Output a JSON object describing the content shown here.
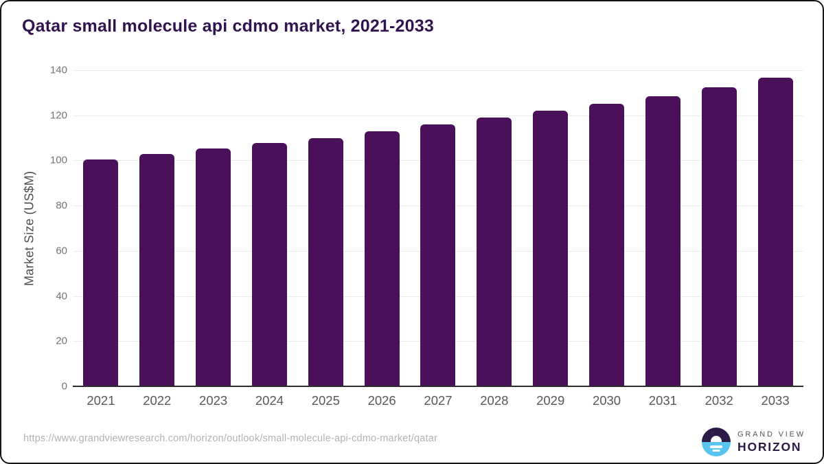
{
  "page": {
    "source_url": "https://www.grandviewresearch.com/horizon/outlook/small-molecule-api-cdmo-market/qatar"
  },
  "chart_data": {
    "type": "bar",
    "title": "Qatar small molecule api cdmo market, 2021-2033",
    "categories": [
      "2021",
      "2022",
      "2023",
      "2024",
      "2025",
      "2026",
      "2027",
      "2028",
      "2029",
      "2030",
      "2031",
      "2032",
      "2033"
    ],
    "values": [
      100.5,
      103.0,
      105.4,
      107.8,
      110.0,
      113.0,
      116.0,
      119.1,
      122.2,
      125.2,
      128.5,
      132.5,
      136.6
    ],
    "xlabel": "",
    "ylabel": "Market Size (US$M)",
    "ylim": [
      0,
      140
    ],
    "yticks": [
      0,
      20,
      40,
      60,
      80,
      100,
      120,
      140
    ],
    "grid": "horizontal",
    "legend": "none",
    "bar_color": "#4A1059",
    "title_color": "#31134F"
  },
  "branding": {
    "logo_line1": "GRAND VIEW",
    "logo_line2": "HORIZON",
    "icon": "grand-view-horizon-logo",
    "dark_purple": "#2E1A47",
    "light_blue": "#58C5F0"
  }
}
